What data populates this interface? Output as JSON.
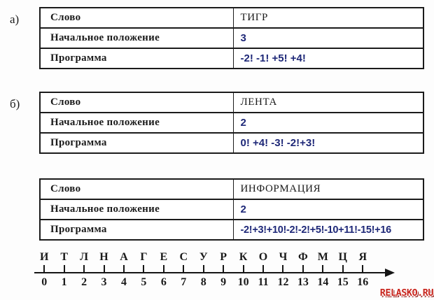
{
  "tasks": [
    {
      "label": "а)",
      "rows": [
        {
          "name": "Слово",
          "value": "ТИГР"
        },
        {
          "name": "Начальное положение",
          "value": "3"
        },
        {
          "name": "Программа",
          "value": "-2! -1! +5! +4!"
        }
      ]
    },
    {
      "label": "б)",
      "rows": [
        {
          "name": "Слово",
          "value": "ЛЕНТА"
        },
        {
          "name": "Начальное положение",
          "value": "2"
        },
        {
          "name": "Программа",
          "value": "0! +4! -3! -2!+3!"
        }
      ]
    },
    {
      "label": "",
      "rows": [
        {
          "name": "Слово",
          "value": "ИНФОРМАЦИЯ"
        },
        {
          "name": "Начальное положение",
          "value": "2"
        },
        {
          "name": "Программа",
          "value": "-2!+3!+10!-2!-2!+5!-10+11!-15!+16"
        }
      ]
    }
  ],
  "number_line": {
    "letters": [
      "И",
      "Т",
      "Л",
      "Н",
      "А",
      "Г",
      "Е",
      "С",
      "У",
      "Р",
      "К",
      "О",
      "Ч",
      "Ф",
      "М",
      "Ц",
      "Я"
    ],
    "numbers": [
      "0",
      "1",
      "2",
      "3",
      "4",
      "5",
      "6",
      "7",
      "8",
      "9",
      "10",
      "11",
      "12",
      "13",
      "14",
      "15",
      "16"
    ]
  },
  "watermark": "RELASKO.RU",
  "colors": {
    "text_black": "#1a1a1a",
    "value_blue": "#1e2878",
    "watermark_red": "#c8251d",
    "background": "#fdfdfd"
  }
}
